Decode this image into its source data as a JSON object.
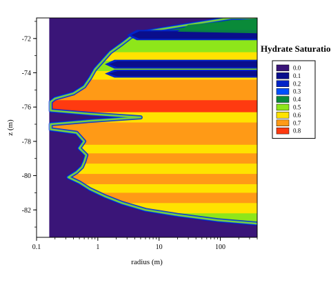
{
  "chart_data": {
    "type": "heatmap",
    "title": "",
    "xlabel": "radius (m)",
    "ylabel": "z (m)",
    "x_scale": "log",
    "xlim": [
      0.1,
      400
    ],
    "ylim": [
      -83.6,
      -70.8
    ],
    "x_ticks": [
      {
        "value": 0.1,
        "label": "0.1"
      },
      {
        "value": 1,
        "label": "1"
      },
      {
        "value": 10,
        "label": "10"
      },
      {
        "value": 100,
        "label": "100"
      }
    ],
    "y_ticks": [
      {
        "value": -72,
        "label": "-72"
      },
      {
        "value": -74,
        "label": "-74"
      },
      {
        "value": -76,
        "label": "-76"
      },
      {
        "value": -78,
        "label": "-78"
      },
      {
        "value": -80,
        "label": "-80"
      },
      {
        "value": -82,
        "label": "-82"
      }
    ],
    "domain_inner_radius": 0.16,
    "legend": {
      "title": "Hydrate Saturation",
      "placement": "right",
      "entries": [
        {
          "label": "0.0",
          "color": "#3a1578"
        },
        {
          "label": "0.1",
          "color": "#0a0e8c"
        },
        {
          "label": "0.2",
          "color": "#0024c8"
        },
        {
          "label": "0.3",
          "color": "#0050ff"
        },
        {
          "label": "0.4",
          "color": "#0a8a3a"
        },
        {
          "label": "0.5",
          "color": "#8ee61a"
        },
        {
          "label": "0.6",
          "color": "#ffe200"
        },
        {
          "label": "0.7",
          "color": "#ff9a16"
        },
        {
          "label": "0.8",
          "color": "#ff3a10"
        }
      ]
    },
    "front_profile": [
      {
        "z": -70.8,
        "r": 150
      },
      {
        "z": -71.2,
        "r": 30
      },
      {
        "z": -71.6,
        "r": 6
      },
      {
        "z": -71.9,
        "r": 3.5
      },
      {
        "z": -72.3,
        "r": 2.5
      },
      {
        "z": -72.8,
        "r": 1.6
      },
      {
        "z": -73.3,
        "r": 1.2
      },
      {
        "z": -73.8,
        "r": 0.9
      },
      {
        "z": -74.3,
        "r": 0.75
      },
      {
        "z": -74.8,
        "r": 0.6
      },
      {
        "z": -75.2,
        "r": 0.4
      },
      {
        "z": -75.5,
        "r": 0.2
      },
      {
        "z": -75.7,
        "r": 0.17
      },
      {
        "z": -76.2,
        "r": 0.17
      },
      {
        "z": -76.4,
        "r": 0.75
      },
      {
        "z": -76.6,
        "r": 5
      },
      {
        "z": -76.8,
        "r": 0.75
      },
      {
        "z": -77.0,
        "r": 0.17
      },
      {
        "z": -77.3,
        "r": 0.17
      },
      {
        "z": -77.5,
        "r": 0.45
      },
      {
        "z": -78.0,
        "r": 0.6
      },
      {
        "z": -78.4,
        "r": 0.5
      },
      {
        "z": -78.8,
        "r": 0.65
      },
      {
        "z": -79.2,
        "r": 0.6
      },
      {
        "z": -79.5,
        "r": 0.55
      },
      {
        "z": -79.8,
        "r": 0.45
      },
      {
        "z": -80.1,
        "r": 0.33
      },
      {
        "z": -80.4,
        "r": 0.5
      },
      {
        "z": -80.8,
        "r": 0.75
      },
      {
        "z": -81.2,
        "r": 1.3
      },
      {
        "z": -81.6,
        "r": 2.5
      },
      {
        "z": -82.0,
        "r": 6
      },
      {
        "z": -82.3,
        "r": 20
      },
      {
        "z": -82.6,
        "r": 90
      },
      {
        "z": -82.8,
        "r": 400
      }
    ],
    "streaks": [
      {
        "z": -71.8,
        "r_tip": 3.0,
        "half_width": 0.22
      },
      {
        "z": -73.5,
        "r_tip": 1.3,
        "half_width": 0.18
      },
      {
        "z": -74.05,
        "r_tip": 1.3,
        "half_width": 0.15
      }
    ],
    "saturation_bands": [
      {
        "z_top": -70.8,
        "z_bottom": -71.5,
        "value": 0.4
      },
      {
        "z_top": -71.5,
        "z_bottom": -72.2,
        "value": 0.5
      },
      {
        "z_top": -72.2,
        "z_bottom": -72.8,
        "value": 0.5
      },
      {
        "z_top": -72.8,
        "z_bottom": -73.3,
        "value": 0.6
      },
      {
        "z_top": -73.3,
        "z_bottom": -73.9,
        "value": 0.5
      },
      {
        "z_top": -73.9,
        "z_bottom": -74.4,
        "value": 0.6
      },
      {
        "z_top": -74.4,
        "z_bottom": -75.0,
        "value": 0.7
      },
      {
        "z_top": -75.0,
        "z_bottom": -75.6,
        "value": 0.7
      },
      {
        "z_top": -75.6,
        "z_bottom": -76.3,
        "value": 0.8
      },
      {
        "z_top": -76.3,
        "z_bottom": -76.9,
        "value": 0.6
      },
      {
        "z_top": -76.9,
        "z_bottom": -77.5,
        "value": 0.7
      },
      {
        "z_top": -77.5,
        "z_bottom": -78.2,
        "value": 0.7
      },
      {
        "z_top": -78.2,
        "z_bottom": -78.7,
        "value": 0.6
      },
      {
        "z_top": -78.7,
        "z_bottom": -79.3,
        "value": 0.7
      },
      {
        "z_top": -79.3,
        "z_bottom": -79.9,
        "value": 0.6
      },
      {
        "z_top": -79.9,
        "z_bottom": -80.5,
        "value": 0.7
      },
      {
        "z_top": -80.5,
        "z_bottom": -81.0,
        "value": 0.6
      },
      {
        "z_top": -81.0,
        "z_bottom": -81.6,
        "value": 0.7
      },
      {
        "z_top": -81.6,
        "z_bottom": -82.2,
        "value": 0.6
      },
      {
        "z_top": -82.2,
        "z_bottom": -82.8,
        "value": 0.5
      }
    ]
  }
}
